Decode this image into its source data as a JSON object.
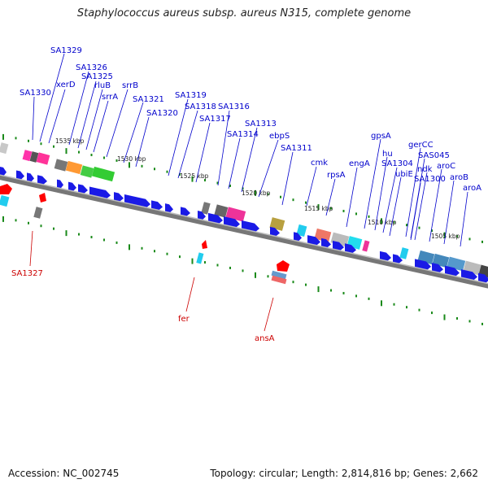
{
  "title": "Staphylococcus aureus subsp. aureus N315, complete genome",
  "accession": "Accession: NC_002745",
  "topology": "Topology: circular; Length: 2,814,816 bp; Genes: 2,662",
  "colors": {
    "forward_gene": "#1a1ae6",
    "reverse_gene": "#e60000",
    "label_forward": "#0000cc",
    "label_reverse": "#cc0000",
    "backbone": "#888888",
    "tick": "#1a8a1a"
  },
  "kbp_ticks": [
    "1535 kbp",
    "1530 kbp",
    "1525 kbp",
    "1520 kbp",
    "1515 kbp",
    "1510 kbp",
    "1505 kbp"
  ],
  "forward_labels": [
    "SA1329",
    "SA1326",
    "SA1325",
    "xerD",
    "SA1330",
    "rluB",
    "srrB",
    "srrA",
    "SA1321",
    "SA1319",
    "SA1318",
    "SA1316",
    "SA1320",
    "SA1317",
    "SA1313",
    "SA1314",
    "ebpS",
    "SA1311",
    "gpsA",
    "cmk",
    "hu",
    "engA",
    "rpsA",
    "SA1304",
    "gerCC",
    "SAS045",
    "ubiE",
    "ndk",
    "aroC",
    "SA1300",
    "aroB",
    "aroA"
  ],
  "reverse_labels": [
    "SA1327",
    "fer",
    "ansA"
  ]
}
